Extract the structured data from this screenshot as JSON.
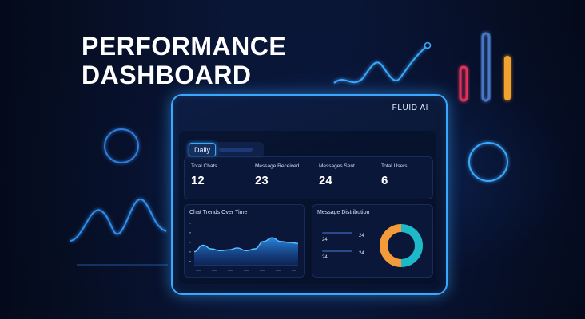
{
  "hero": {
    "title_line1": "PERFORMANCE",
    "title_line2": "DASHBOARD"
  },
  "panel": {
    "brand": "FLUID AI",
    "tabs": [
      {
        "label": "Daily",
        "active": true
      },
      {
        "label": "",
        "active": false
      }
    ],
    "stats": [
      {
        "label": "Total Chats",
        "value": "12"
      },
      {
        "label": "Message Received",
        "value": "23"
      },
      {
        "label": "Messages Sent",
        "value": "24"
      },
      {
        "label": "Total Users",
        "value": "6"
      }
    ],
    "trend_title": "Chat Trends Over Time",
    "distribution_title": "Message Distribution",
    "distribution_rows": [
      {
        "left": "24",
        "right": "24"
      },
      {
        "left": "24",
        "right": "24"
      }
    ]
  },
  "colors": {
    "accent": "#3aa8ff",
    "donut_teal": "#1fb8c9",
    "donut_orange": "#f39a3a",
    "bar_red": "#e0325a",
    "bar_blue": "#4a78c8",
    "bar_orange": "#f2a32e"
  },
  "chart_data": {
    "type": "area",
    "title": "Chat Trends Over Time",
    "x": [
      0,
      1,
      2,
      3,
      4,
      5,
      6,
      7,
      8,
      9,
      10,
      11,
      12
    ],
    "values": [
      1.5,
      2.2,
      1.8,
      1.6,
      1.7,
      1.9,
      1.6,
      1.8,
      2.6,
      3.0,
      2.6,
      2.5,
      2.4
    ],
    "ylim": [
      0,
      5
    ],
    "grid": false
  },
  "donut_data": {
    "type": "pie",
    "values": [
      50,
      50
    ],
    "colors": [
      "#1fb8c9",
      "#f39a3a"
    ]
  }
}
